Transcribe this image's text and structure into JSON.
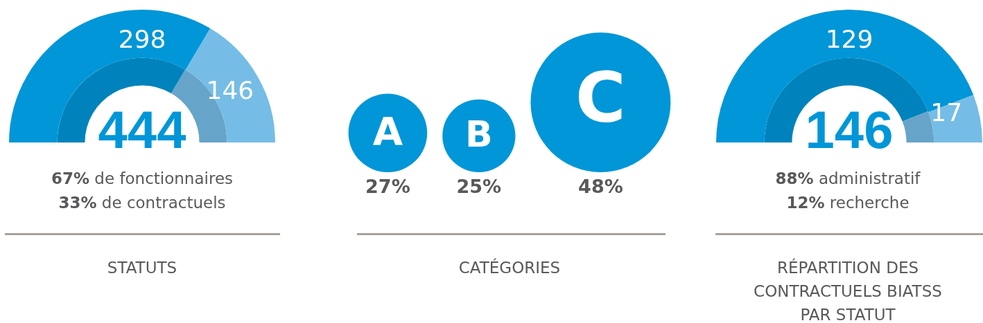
{
  "chart_data": [
    {
      "type": "donut",
      "title": "STATUTS",
      "categories": [
        null,
        null
      ],
      "series": [
        {
          "values": [
            298,
            146
          ],
          "colors": [
            "#0096d8",
            "#75bde6"
          ],
          "value_labels": [
            "298",
            "146"
          ]
        },
        {
          "values": [
            67,
            33
          ],
          "colors": [
            "#0083bc",
            "#66a5c9"
          ]
        }
      ],
      "totals": [
        "444"
      ],
      "annotations": [
        "67% de fonctionnaires",
        "33% de contractuels"
      ]
    },
    {
      "type": "other",
      "title": "CATÉGORIES",
      "categories": [
        "A",
        "B",
        "C"
      ],
      "values": [
        27,
        25,
        48
      ],
      "color": "#0096d8",
      "value_labels": [
        "27%",
        "25%",
        "48%"
      ]
    },
    {
      "type": "donut",
      "title": "RÉPARTITION DES CONTRACTUELS BIATSS PAR STATUT",
      "categories": [
        null,
        null
      ],
      "series": [
        {
          "values": [
            129,
            17
          ],
          "colors": [
            "#0096d8",
            "#75bde6"
          ],
          "value_labels": [
            "129",
            "17"
          ]
        },
        {
          "values": [
            88,
            12
          ],
          "colors": [
            "#0083bc",
            "#66a5c9"
          ]
        }
      ],
      "totals": [
        "146"
      ],
      "annotations": [
        "88% administratif",
        "12% recherche"
      ]
    }
  ]
}
